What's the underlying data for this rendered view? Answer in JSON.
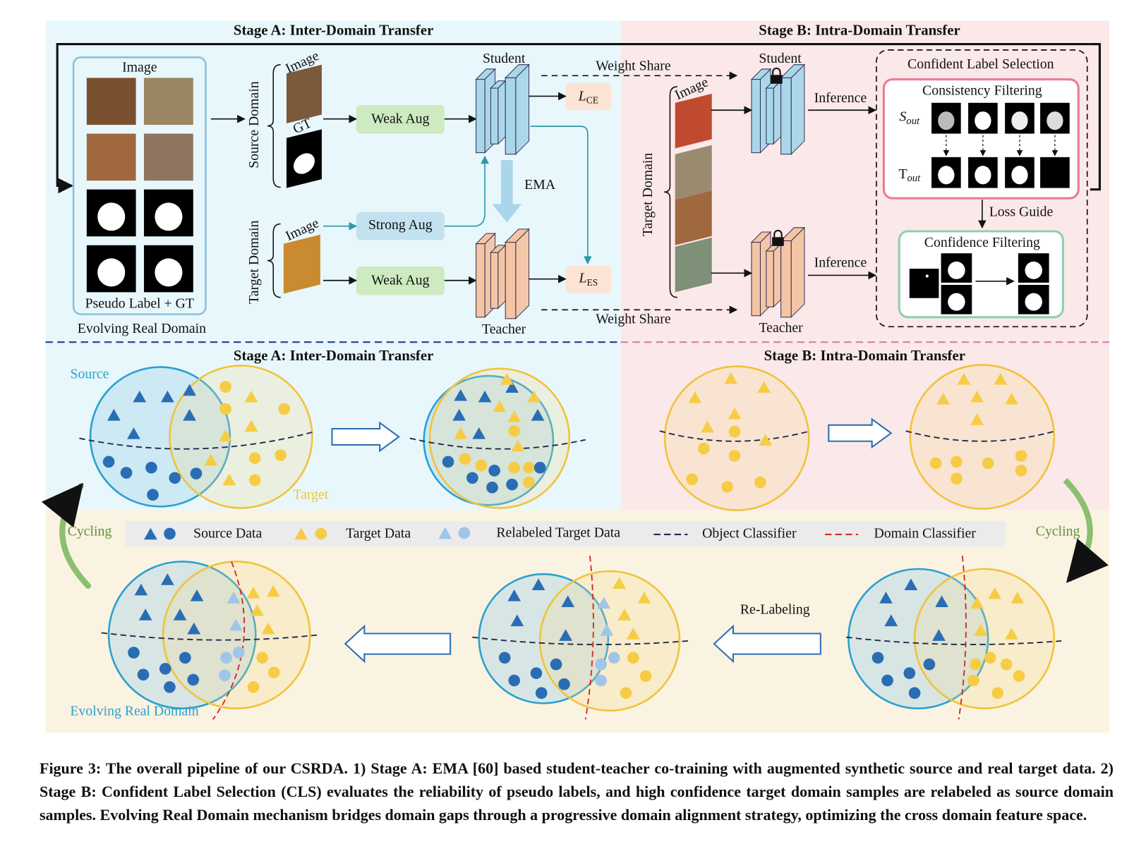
{
  "top": {
    "stage_a_title": "Stage A: Inter-Domain Transfer",
    "stage_b_title": "Stage B: Intra-Domain Transfer",
    "image_label": "Image",
    "pseudo_label_gt": "Pseudo Label + GT",
    "evolving_real_domain": "Evolving Real Domain",
    "source_domain": "Source Domain",
    "source_image": "Image",
    "gt": "GT",
    "target_domain": "Target Domain",
    "target_image": "Image",
    "weak_aug_1": "Weak Aug",
    "strong_aug": "Strong Aug",
    "weak_aug_2": "Weak Aug",
    "student": "Student",
    "teacher": "Teacher",
    "ema": "EMA",
    "loss_ce": {
      "symbol": "L",
      "sub": "CE"
    },
    "loss_es": {
      "symbol": "L",
      "sub": "ES"
    },
    "weight_share_1": "Weight Share",
    "weight_share_2": "Weight Share",
    "student_b": "Student",
    "teacher_b": "Teacher",
    "target_domain_b": "Target Domain",
    "target_image_b": "Image",
    "inference_1": "Inference",
    "inference_2": "Inference",
    "cls_title": "Confident Label Selection",
    "consistency_filtering": "Consistency Filtering",
    "s_out": {
      "symbol": "S",
      "sub": "out"
    },
    "t_out": {
      "symbol": "T",
      "sub": "out"
    },
    "loss_guide": "Loss Guide",
    "confidence_filtering": "Confidence Filtering"
  },
  "bottom": {
    "stage_a_title": "Stage A: Inter-Domain Transfer",
    "stage_b_title": "Stage B: Intra-Domain Transfer",
    "source": "Source",
    "target": "Target",
    "legend": [
      "Source Data",
      "Target Data",
      "Relabeled Target Data",
      "Object Classifier",
      "Domain Classifier"
    ],
    "cycling_left": "Cycling",
    "cycling_right": "Cycling",
    "re_labeling": "Re-Labeling",
    "evolving_real_domain": "Evolving Real Domain"
  },
  "caption": "Figure 3: The overall pipeline of our CSRDA. 1) Stage A: EMA [60] based student-teacher co-training with augmented synthetic source and real target data. 2) Stage B: Confident Label Selection (CLS) evaluates the reliability of pseudo labels, and high confidence target domain samples are relabeled as source domain samples. Evolving Real Domain mechanism bridges domain gaps through a progressive domain alignment strategy, optimizing the cross domain feature space."
}
